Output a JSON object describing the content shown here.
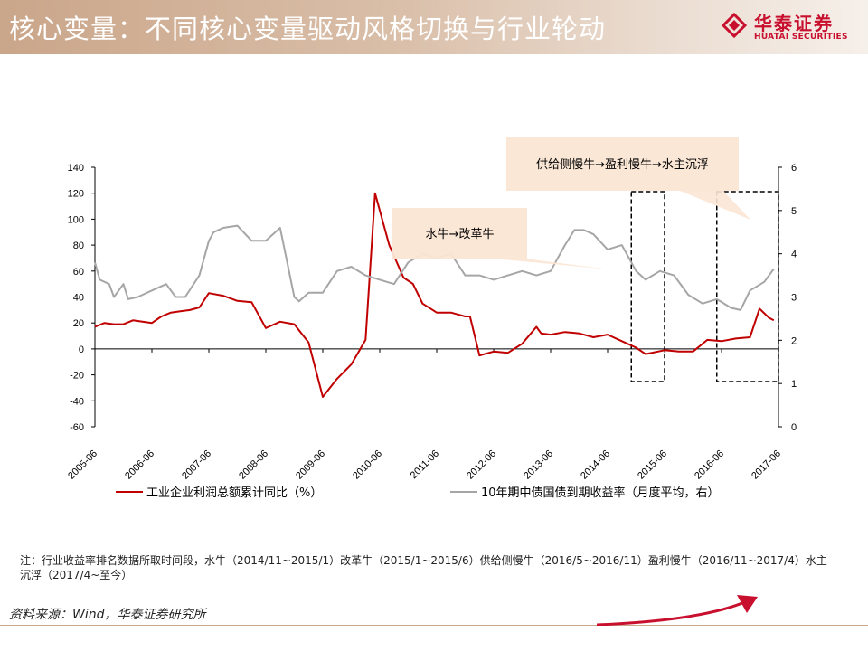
{
  "header": {
    "title": "核心变量：不同核心变量驱动风格切换与行业轮动",
    "logo_cn": "华泰证券",
    "logo_en": "HUATAI SECURITIES",
    "brand_color": "#c8102e"
  },
  "chart_data": {
    "type": "line",
    "x_ticks": [
      "2005-06",
      "2006-06",
      "2007-06",
      "2008-06",
      "2009-06",
      "2010-06",
      "2011-06",
      "2012-06",
      "2013-06",
      "2014-06",
      "2015-06",
      "2016-06",
      "2017-06"
    ],
    "x_range": [
      "2005-06",
      "2017-06"
    ],
    "y_left": {
      "range": [
        -60,
        140
      ],
      "ticks": [
        -60,
        -40,
        -20,
        0,
        20,
        40,
        60,
        80,
        100,
        120,
        140
      ]
    },
    "y_right": {
      "range": [
        0,
        6
      ],
      "ticks": [
        0,
        1,
        2,
        3,
        4,
        5,
        6
      ]
    },
    "grid": false,
    "legend_position": "bottom",
    "series": [
      {
        "name": "工业企业利润总额累计同比（%）",
        "axis": "left",
        "color": "#c00000",
        "points": [
          [
            "2005-06",
            17
          ],
          [
            "2005-08",
            20
          ],
          [
            "2005-10",
            19
          ],
          [
            "2005-12",
            19
          ],
          [
            "2006-02",
            22
          ],
          [
            "2006-04",
            21
          ],
          [
            "2006-06",
            20
          ],
          [
            "2006-08",
            25
          ],
          [
            "2006-10",
            28
          ],
          [
            "2006-12",
            29
          ],
          [
            "2007-02",
            30
          ],
          [
            "2007-04",
            32
          ],
          [
            "2007-06",
            43
          ],
          [
            "2007-09",
            41
          ],
          [
            "2007-12",
            37
          ],
          [
            "2008-03",
            36
          ],
          [
            "2008-06",
            16
          ],
          [
            "2008-09",
            21
          ],
          [
            "2008-12",
            19
          ],
          [
            "2009-03",
            5
          ],
          [
            "2009-06",
            -37
          ],
          [
            "2009-09",
            -23
          ],
          [
            "2009-12",
            -12
          ],
          [
            "2010-03",
            7
          ],
          [
            "2010-05",
            120
          ],
          [
            "2010-08",
            80
          ],
          [
            "2010-11",
            55
          ],
          [
            "2011-01",
            50
          ],
          [
            "2011-03",
            35
          ],
          [
            "2011-06",
            28
          ],
          [
            "2011-09",
            28
          ],
          [
            "2011-12",
            25
          ],
          [
            "2012-01",
            25
          ],
          [
            "2012-03",
            -5
          ],
          [
            "2012-06",
            -2
          ],
          [
            "2012-09",
            -3
          ],
          [
            "2012-12",
            4
          ],
          [
            "2013-03",
            17
          ],
          [
            "2013-04",
            12
          ],
          [
            "2013-06",
            11
          ],
          [
            "2013-09",
            13
          ],
          [
            "2013-12",
            12
          ],
          [
            "2014-03",
            9
          ],
          [
            "2014-06",
            11
          ],
          [
            "2014-09",
            6
          ],
          [
            "2014-12",
            1
          ],
          [
            "2015-02",
            -4
          ],
          [
            "2015-06",
            -1
          ],
          [
            "2015-09",
            -2
          ],
          [
            "2015-12",
            -2
          ],
          [
            "2016-03",
            7
          ],
          [
            "2016-06",
            6
          ],
          [
            "2016-09",
            8
          ],
          [
            "2016-12",
            9
          ],
          [
            "2017-02",
            31
          ],
          [
            "2017-04",
            24
          ],
          [
            "2017-05",
            22
          ]
        ]
      },
      {
        "name": "10年期中债国债到期收益率（月度平均，右）",
        "axis": "right",
        "color": "#a6a6a6",
        "points": [
          [
            "2005-06",
            3.8
          ],
          [
            "2005-07",
            3.4
          ],
          [
            "2005-09",
            3.3
          ],
          [
            "2005-10",
            3.0
          ],
          [
            "2005-12",
            3.3
          ],
          [
            "2006-01",
            2.95
          ],
          [
            "2006-03",
            3.0
          ],
          [
            "2006-06",
            3.15
          ],
          [
            "2006-09",
            3.3
          ],
          [
            "2006-11",
            3.0
          ],
          [
            "2007-01",
            3.0
          ],
          [
            "2007-04",
            3.5
          ],
          [
            "2007-06",
            4.3
          ],
          [
            "2007-07",
            4.5
          ],
          [
            "2007-09",
            4.6
          ],
          [
            "2007-12",
            4.65
          ],
          [
            "2008-03",
            4.3
          ],
          [
            "2008-06",
            4.3
          ],
          [
            "2008-09",
            4.6
          ],
          [
            "2008-12",
            3.0
          ],
          [
            "2009-01",
            2.9
          ],
          [
            "2009-03",
            3.1
          ],
          [
            "2009-06",
            3.1
          ],
          [
            "2009-09",
            3.6
          ],
          [
            "2009-12",
            3.7
          ],
          [
            "2010-03",
            3.5
          ],
          [
            "2010-06",
            3.4
          ],
          [
            "2010-09",
            3.3
          ],
          [
            "2010-12",
            3.8
          ],
          [
            "2011-03",
            4.0
          ],
          [
            "2011-06",
            3.9
          ],
          [
            "2011-09",
            4.0
          ],
          [
            "2011-12",
            3.5
          ],
          [
            "2012-03",
            3.5
          ],
          [
            "2012-06",
            3.4
          ],
          [
            "2012-09",
            3.5
          ],
          [
            "2012-12",
            3.6
          ],
          [
            "2013-03",
            3.5
          ],
          [
            "2013-06",
            3.6
          ],
          [
            "2013-09",
            4.2
          ],
          [
            "2013-11",
            4.55
          ],
          [
            "2014-01",
            4.55
          ],
          [
            "2014-03",
            4.45
          ],
          [
            "2014-06",
            4.1
          ],
          [
            "2014-09",
            4.2
          ],
          [
            "2014-12",
            3.6
          ],
          [
            "2015-02",
            3.4
          ],
          [
            "2015-05",
            3.6
          ],
          [
            "2015-08",
            3.5
          ],
          [
            "2015-11",
            3.05
          ],
          [
            "2016-02",
            2.85
          ],
          [
            "2016-05",
            2.95
          ],
          [
            "2016-08",
            2.75
          ],
          [
            "2016-10",
            2.7
          ],
          [
            "2016-12",
            3.15
          ],
          [
            "2017-03",
            3.35
          ],
          [
            "2017-05",
            3.65
          ]
        ]
      }
    ],
    "annotations": [
      {
        "text": "水牛→改革牛",
        "points_to": "2014-06"
      },
      {
        "text": "供给侧慢牛→盈利慢牛→水主沉浮",
        "points_to": "2016-06"
      }
    ],
    "dashed_boxes": [
      [
        "2014-11",
        "2015-06"
      ],
      [
        "2016-05",
        "2017-06"
      ]
    ]
  },
  "note": "注：行业收益率排名数据所取时间段，水牛（2014/11~2015/1）改革牛（2015/1~2015/6）供给侧慢牛（2016/5~2016/11）盈利慢牛（2016/11~2017/4）水主沉浮（2017/4~至今）",
  "source": "资料来源：Wind，华泰证券研究所"
}
